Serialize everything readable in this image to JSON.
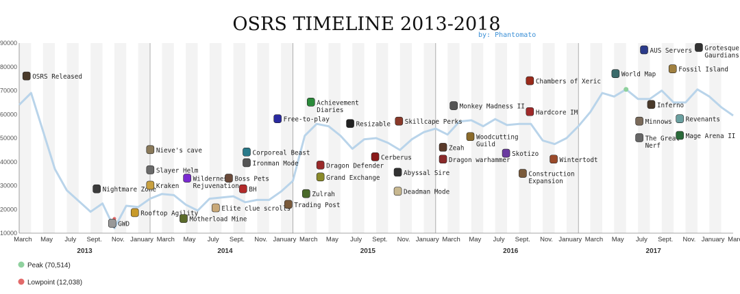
{
  "chart_data": {
    "type": "line",
    "title": "OSRS TIMELINE 2013-2018",
    "subtitle": "by: Phantomato",
    "ylim": [
      10000,
      90000
    ],
    "yticks": [
      10000,
      20000,
      30000,
      40000,
      50000,
      60000,
      70000,
      80000,
      90000
    ],
    "grid": "vertical month bands",
    "xlim": [
      0,
      60
    ],
    "months": [
      "March",
      "May",
      "July",
      "Sept.",
      "Nov.",
      "January",
      "March",
      "May",
      "July",
      "Sept.",
      "Nov.",
      "January",
      "March",
      "May",
      "July",
      "Sept.",
      "Nov.",
      "January",
      "March",
      "May",
      "July",
      "Sept.",
      "Nov.",
      "January",
      "March",
      "May",
      "July",
      "Sept.",
      "Nov.",
      "January",
      "March",
      "May",
      "July",
      "Sept.",
      "Nov."
    ],
    "years": [
      "2013",
      "2014",
      "2015",
      "2016",
      "2017"
    ],
    "series": [
      {
        "color": "#b9d4ea",
        "points": [
          [
            0,
            64000
          ],
          [
            1,
            69000
          ],
          [
            3,
            37000
          ],
          [
            4,
            28000
          ],
          [
            6,
            19000
          ],
          [
            7,
            22500
          ],
          [
            8,
            12038
          ],
          [
            9,
            21500
          ],
          [
            10,
            21000
          ],
          [
            11,
            24500
          ],
          [
            12,
            26500
          ],
          [
            13,
            26000
          ],
          [
            14,
            22000
          ],
          [
            15,
            19500
          ],
          [
            16,
            24500
          ],
          [
            18,
            25500
          ],
          [
            19,
            23000
          ],
          [
            20,
            24000
          ],
          [
            21,
            24000
          ],
          [
            22,
            27500
          ],
          [
            23,
            32000
          ],
          [
            24,
            51000
          ],
          [
            25,
            56000
          ],
          [
            26,
            55000
          ],
          [
            27,
            51000
          ],
          [
            28,
            45500
          ],
          [
            29,
            49500
          ],
          [
            30,
            50000
          ],
          [
            31,
            48000
          ],
          [
            32,
            45000
          ],
          [
            33,
            49500
          ],
          [
            34,
            52500
          ],
          [
            35,
            54000
          ],
          [
            36,
            51500
          ],
          [
            37,
            57000
          ],
          [
            38,
            57500
          ],
          [
            39,
            55000
          ],
          [
            40,
            58000
          ],
          [
            41,
            55500
          ],
          [
            42,
            56000
          ],
          [
            43,
            56000
          ],
          [
            44,
            49000
          ],
          [
            45,
            47500
          ],
          [
            46,
            50000
          ],
          [
            47,
            55000
          ],
          [
            48,
            61000
          ],
          [
            49,
            69000
          ],
          [
            50,
            67500
          ],
          [
            51,
            70514
          ],
          [
            52,
            66500
          ],
          [
            53,
            66500
          ],
          [
            54,
            70000
          ],
          [
            55,
            65000
          ],
          [
            56,
            65000
          ],
          [
            57,
            70500
          ],
          [
            58,
            67500
          ],
          [
            59,
            63000
          ],
          [
            60,
            59500
          ]
        ]
      }
    ],
    "peak": {
      "label": "Peak (70,514)",
      "x": 51,
      "y": 70514,
      "color": "#8fd19e"
    },
    "lowpoint": {
      "label": "Lowpoint (12,038)",
      "x": 8,
      "y": 12038,
      "color": "#e26a6a"
    },
    "annotations": [
      {
        "text": "OSRS Released",
        "x": 0.3,
        "y": 75000,
        "icon": "axe-icon",
        "iconColor": "#4a3a2a"
      },
      {
        "text": "Nightmare Zone",
        "x": 6.2,
        "y": 27500,
        "icon": "helm-icon",
        "iconColor": "#3a3a3a"
      },
      {
        "text": "GWD",
        "x": 7.5,
        "y": 13000,
        "icon": "sword-icon",
        "iconColor": "#999999"
      },
      {
        "text": "Rooftop Agility",
        "x": 9.4,
        "y": 17500,
        "icon": "agility-icon",
        "iconColor": "#c89a2a"
      },
      {
        "text": "Nieve's cave",
        "x": 10.7,
        "y": 44000,
        "icon": "nieve-icon",
        "iconColor": "#8a7a5a"
      },
      {
        "text": "Slayer Helm",
        "x": 10.7,
        "y": 35500,
        "icon": "slayer-helm-icon",
        "iconColor": "#6a6a6a"
      },
      {
        "text": "Kraken",
        "x": 10.7,
        "y": 29000,
        "icon": "kraken-icon",
        "iconColor": "#c8a040"
      },
      {
        "text": "Wilderness",
        "x": 13.8,
        "y": 32000,
        "icon": "wilderness-icon",
        "iconColor": "#7a2ad0"
      },
      {
        "text": "Rejuvenation",
        "x": 13.8,
        "y": 29000,
        "icon": "",
        "iconColor": ""
      },
      {
        "text": "Motherload Mine",
        "x": 13.5,
        "y": 15000,
        "icon": "motherlode-icon",
        "iconColor": "#5a6a2a"
      },
      {
        "text": "Boss Pets",
        "x": 17.3,
        "y": 32000,
        "icon": "pet-icon",
        "iconColor": "#6a4a3a"
      },
      {
        "text": "BH",
        "x": 18.5,
        "y": 27500,
        "icon": "bh-icon",
        "iconColor": "#b22a2a"
      },
      {
        "text": "Elite clue scrolls",
        "x": 16.2,
        "y": 19500,
        "icon": "clue-icon",
        "iconColor": "#c8a878"
      },
      {
        "text": "Corporeal Beast",
        "x": 18.8,
        "y": 43000,
        "icon": "corp-icon",
        "iconColor": "#2a7a8a"
      },
      {
        "text": "Ironman Mode",
        "x": 18.8,
        "y": 38500,
        "icon": "ironman-icon",
        "iconColor": "#555555"
      },
      {
        "text": "Trading Post",
        "x": 22.3,
        "y": 21000,
        "icon": "trading-icon",
        "iconColor": "#7a5a3a"
      },
      {
        "text": "Free-to-play",
        "x": 21.4,
        "y": 57000,
        "icon": "f2p-icon",
        "iconColor": "#2a2aa0"
      },
      {
        "text": "Achievement",
        "x": 24.2,
        "y": 64000,
        "icon": "diary-icon",
        "iconColor": "#2a8a3a"
      },
      {
        "text": "Diaries",
        "x": 24.2,
        "y": 61000,
        "icon": "",
        "iconColor": ""
      },
      {
        "text": "Resizable",
        "x": 27.5,
        "y": 55000,
        "icon": "resize-icon",
        "iconColor": "#222222"
      },
      {
        "text": "Dragon Defender",
        "x": 25.0,
        "y": 37500,
        "icon": "defender-icon",
        "iconColor": "#9a2a2a"
      },
      {
        "text": "Grand Exchange",
        "x": 25.0,
        "y": 32500,
        "icon": "ge-icon",
        "iconColor": "#8a8a2a"
      },
      {
        "text": "Zulrah",
        "x": 23.8,
        "y": 25500,
        "icon": "zulrah-icon",
        "iconColor": "#4a6a2a"
      },
      {
        "text": "Skillcape Perks",
        "x": 31.6,
        "y": 56000,
        "icon": "skillcape-icon",
        "iconColor": "#8a3a2a"
      },
      {
        "text": "Cerberus",
        "x": 29.6,
        "y": 41000,
        "icon": "cerberus-icon",
        "iconColor": "#8a1a1a"
      },
      {
        "text": "Abyssal Sire",
        "x": 31.5,
        "y": 34500,
        "icon": "sire-icon",
        "iconColor": "#333333"
      },
      {
        "text": "Deadman Mode",
        "x": 31.5,
        "y": 26500,
        "icon": "skull-icon",
        "iconColor": "#c8b890"
      },
      {
        "text": "Monkey Madness II",
        "x": 36.2,
        "y": 62500,
        "icon": "monkey-icon",
        "iconColor": "#555555"
      },
      {
        "text": "Zeah",
        "x": 35.3,
        "y": 45000,
        "icon": "zeah-icon",
        "iconColor": "#5a3a2a"
      },
      {
        "text": "Dragon warhammer",
        "x": 35.3,
        "y": 40000,
        "icon": "warhammer-icon",
        "iconColor": "#8a2a2a"
      },
      {
        "text": "Woodcutting",
        "x": 37.6,
        "y": 49500,
        "icon": "woodcutting-icon",
        "iconColor": "#8a6a2a"
      },
      {
        "text": "Guild",
        "x": 37.6,
        "y": 46500,
        "icon": "",
        "iconColor": ""
      },
      {
        "text": "Skotizo",
        "x": 40.6,
        "y": 42500,
        "icon": "skotizo-icon",
        "iconColor": "#6a3aa0"
      },
      {
        "text": "Construction",
        "x": 42.0,
        "y": 34000,
        "icon": "construction-icon",
        "iconColor": "#7a5a3a"
      },
      {
        "text": "Expansion",
        "x": 42.0,
        "y": 31000,
        "icon": "",
        "iconColor": ""
      },
      {
        "text": "Chambers of Xeric",
        "x": 42.6,
        "y": 73000,
        "icon": "xeric-icon",
        "iconColor": "#9a2a1a"
      },
      {
        "text": "Hardcore IM",
        "x": 42.6,
        "y": 60000,
        "icon": "hcim-icon",
        "iconColor": "#a02a2a"
      },
      {
        "text": "Wintertodt",
        "x": 44.6,
        "y": 40000,
        "icon": "wintertodt-icon",
        "iconColor": "#9a4a2a"
      },
      {
        "text": "World Map",
        "x": 49.8,
        "y": 76000,
        "icon": "globe-icon",
        "iconColor": "#3a6a6a"
      },
      {
        "text": "AUS Servers",
        "x": 52.2,
        "y": 86000,
        "icon": "flag-icon",
        "iconColor": "#2a3a8a"
      },
      {
        "text": "Inferno",
        "x": 52.8,
        "y": 63000,
        "icon": "inferno-icon",
        "iconColor": "#4a3a2a"
      },
      {
        "text": "Minnows",
        "x": 51.8,
        "y": 56000,
        "icon": "minnow-icon",
        "iconColor": "#7a6a5a"
      },
      {
        "text": "The Great",
        "x": 51.8,
        "y": 49000,
        "icon": "nerf-icon",
        "iconColor": "#666666"
      },
      {
        "text": "Nerf",
        "x": 51.8,
        "y": 46000,
        "icon": "",
        "iconColor": ""
      },
      {
        "text": "Fossil Island",
        "x": 54.6,
        "y": 78000,
        "icon": "fossil-icon",
        "iconColor": "#a08040"
      },
      {
        "text": "Grotesque",
        "x": 56.8,
        "y": 87000,
        "icon": "grotesque-icon",
        "iconColor": "#333333"
      },
      {
        "text": "Gaurdians",
        "x": 56.8,
        "y": 84000,
        "icon": "",
        "iconColor": ""
      },
      {
        "text": "Revenants",
        "x": 55.2,
        "y": 57000,
        "icon": "revenant-icon",
        "iconColor": "#6aa0a0"
      },
      {
        "text": "Mage Arena II",
        "x": 55.2,
        "y": 50000,
        "icon": "mage-arena-icon",
        "iconColor": "#2a6a3a"
      }
    ]
  }
}
